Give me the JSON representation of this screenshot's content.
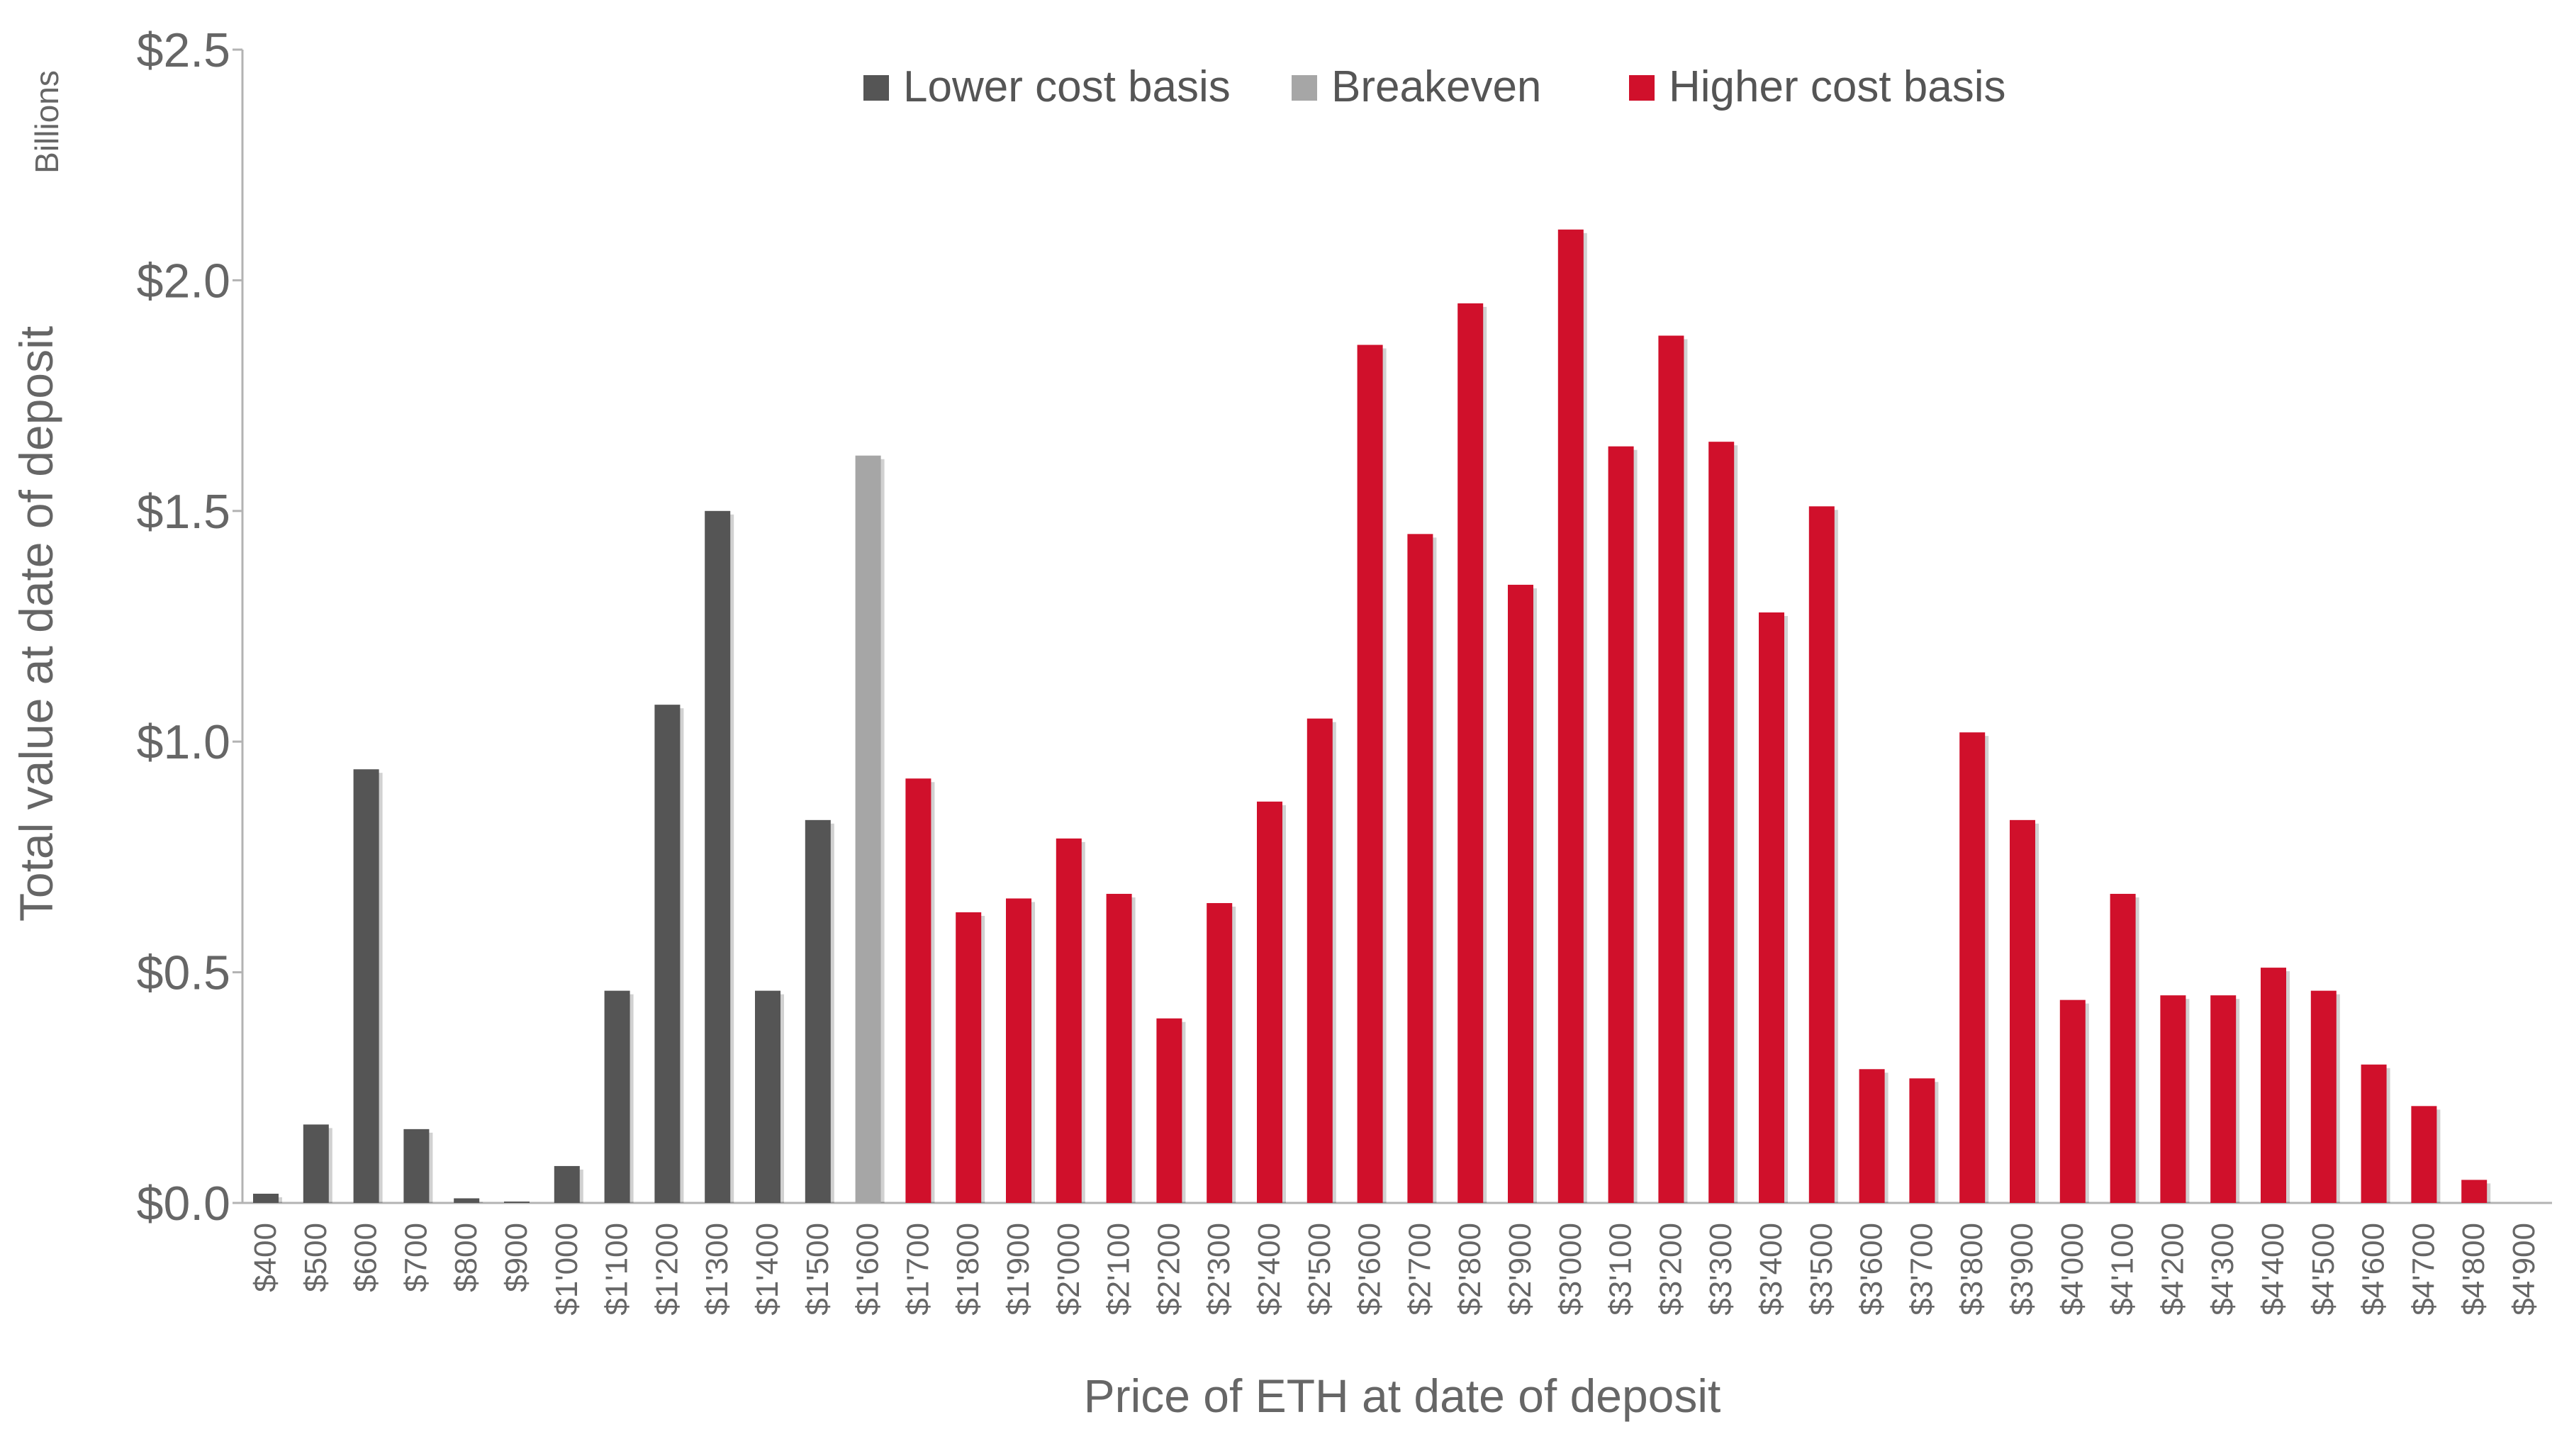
{
  "chart_data": {
    "type": "bar",
    "xlabel": "Price of ETH at date of deposit",
    "ylabel": "Total value at date of deposit",
    "yunit": "Billions",
    "ylim": [
      0,
      2.5
    ],
    "yticks": [
      "$0.0",
      "$0.5",
      "$1.0",
      "$1.5",
      "$2.0",
      "$2.5"
    ],
    "ytick_values": [
      0,
      0.5,
      1.0,
      1.5,
      2.0,
      2.5
    ],
    "grid": false,
    "legend_position": "top",
    "legend": [
      {
        "label": "Lower cost basis",
        "color": "#555555"
      },
      {
        "label": "Breakeven",
        "color": "#a6a6a6"
      },
      {
        "label": "Higher cost basis",
        "color": "#d0102b"
      }
    ],
    "categories": [
      "$400",
      "$500",
      "$600",
      "$700",
      "$800",
      "$900",
      "$1'000",
      "$1'100",
      "$1'200",
      "$1'300",
      "$1'400",
      "$1'500",
      "$1'600",
      "$1'700",
      "$1'800",
      "$1'900",
      "$2'000",
      "$2'100",
      "$2'200",
      "$2'300",
      "$2'400",
      "$2'500",
      "$2'600",
      "$2'700",
      "$2'800",
      "$2'900",
      "$3'000",
      "$3'100",
      "$3'200",
      "$3'300",
      "$3'400",
      "$3'500",
      "$3'600",
      "$3'700",
      "$3'800",
      "$3'900",
      "$4'000",
      "$4'100",
      "$4'200",
      "$4'300",
      "$4'400",
      "$4'500",
      "$4'600",
      "$4'700",
      "$4'800",
      "$4'900"
    ],
    "values": [
      0.02,
      0.17,
      0.94,
      0.16,
      0.01,
      0.003,
      0.08,
      0.46,
      1.08,
      1.5,
      0.46,
      0.83,
      1.62,
      0.92,
      0.63,
      0.66,
      0.79,
      0.67,
      0.4,
      0.65,
      0.87,
      1.05,
      1.86,
      1.45,
      1.95,
      1.34,
      2.11,
      1.64,
      1.88,
      1.65,
      1.28,
      1.51,
      0.29,
      0.27,
      1.02,
      0.83,
      0.44,
      0.67,
      0.45,
      0.45,
      0.51,
      0.46,
      0.3,
      0.21,
      0.05,
      0
    ],
    "groups": [
      "lower",
      "lower",
      "lower",
      "lower",
      "lower",
      "lower",
      "lower",
      "lower",
      "lower",
      "lower",
      "lower",
      "lower",
      "breakeven",
      "higher",
      "higher",
      "higher",
      "higher",
      "higher",
      "higher",
      "higher",
      "higher",
      "higher",
      "higher",
      "higher",
      "higher",
      "higher",
      "higher",
      "higher",
      "higher",
      "higher",
      "higher",
      "higher",
      "higher",
      "higher",
      "higher",
      "higher",
      "higher",
      "higher",
      "higher",
      "higher",
      "higher",
      "higher",
      "higher",
      "higher",
      "higher",
      "higher"
    ],
    "group_colors": {
      "lower": "#555555",
      "breakeven": "#a6a6a6",
      "higher": "#d0102b"
    }
  }
}
